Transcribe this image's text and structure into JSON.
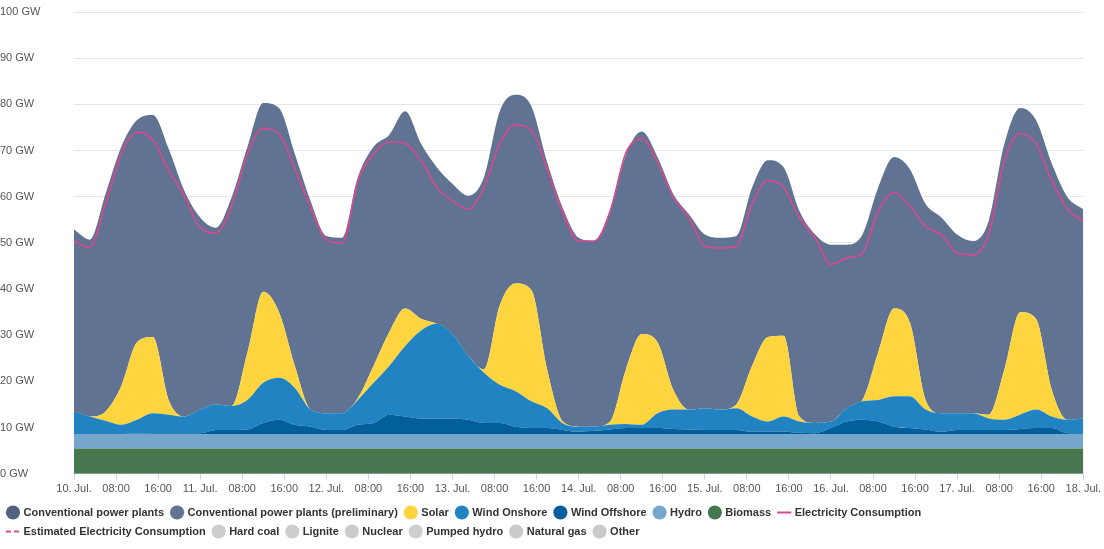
{
  "chart_data": {
    "type": "area",
    "stacked": true,
    "grid": "y",
    "legend": "bottom",
    "marker": "none",
    "x": [
      "--07-10T00:00",
      "--07-10T03:00",
      "--07-10T06:00",
      "--07-10T09:00",
      "--07-10T12:00",
      "--07-10T15:00",
      "--07-10T18:00",
      "--07-10T21:00",
      "--07-11T00:00",
      "--07-11T03:00",
      "--07-11T06:00",
      "--07-11T09:00",
      "--07-11T12:00",
      "--07-11T15:00",
      "--07-11T18:00",
      "--07-11T21:00",
      "--07-12T00:00",
      "--07-12T03:00",
      "--07-12T06:00",
      "--07-12T09:00",
      "--07-12T12:00",
      "--07-12T15:00",
      "--07-12T18:00",
      "--07-12T21:00",
      "--07-13T00:00",
      "--07-13T03:00",
      "--07-13T06:00",
      "--07-13T09:00",
      "--07-13T12:00",
      "--07-13T15:00",
      "--07-13T18:00",
      "--07-13T21:00",
      "--07-14T00:00",
      "--07-14T03:00",
      "--07-14T06:00",
      "--07-14T09:00",
      "--07-14T12:00",
      "--07-14T15:00",
      "--07-14T18:00",
      "--07-14T21:00",
      "--07-15T00:00",
      "--07-15T03:00",
      "--07-15T06:00",
      "--07-15T09:00",
      "--07-15T12:00",
      "--07-15T15:00",
      "--07-15T18:00",
      "--07-15T21:00",
      "--07-16T00:00",
      "--07-16T03:00",
      "--07-16T06:00",
      "--07-16T09:00",
      "--07-16T12:00",
      "--07-16T15:00",
      "--07-16T18:00",
      "--07-16T21:00",
      "--07-17T00:00",
      "--07-17T03:00",
      "--07-17T06:00",
      "--07-17T09:00",
      "--07-17T12:00",
      "--07-17T15:00",
      "--07-17T18:00",
      "--07-17T21:00",
      "--07-18T00:00"
    ],
    "xlim": [
      "--07-10T00:00",
      "--07-18T00:00"
    ],
    "xticks": [
      {
        "value": "--07-10T00:00",
        "label": "10. Jul."
      },
      {
        "value": "--07-10T08:00",
        "label": "08:00"
      },
      {
        "value": "--07-10T16:00",
        "label": "16:00"
      },
      {
        "value": "--07-11T00:00",
        "label": "11. Jul."
      },
      {
        "value": "--07-11T08:00",
        "label": "08:00"
      },
      {
        "value": "--07-11T16:00",
        "label": "16:00"
      },
      {
        "value": "--07-12T00:00",
        "label": "12. Jul."
      },
      {
        "value": "--07-12T08:00",
        "label": "08:00"
      },
      {
        "value": "--07-12T16:00",
        "label": "16:00"
      },
      {
        "value": "--07-13T00:00",
        "label": "13. Jul."
      },
      {
        "value": "--07-13T08:00",
        "label": "08:00"
      },
      {
        "value": "--07-13T16:00",
        "label": "16:00"
      },
      {
        "value": "--07-14T00:00",
        "label": "14. Jul."
      },
      {
        "value": "--07-14T08:00",
        "label": "08:00"
      },
      {
        "value": "--07-14T16:00",
        "label": "16:00"
      },
      {
        "value": "--07-15T00:00",
        "label": "15. Jul."
      },
      {
        "value": "--07-15T08:00",
        "label": "08:00"
      },
      {
        "value": "--07-15T16:00",
        "label": "16:00"
      },
      {
        "value": "--07-16T00:00",
        "label": "16. Jul."
      },
      {
        "value": "--07-16T08:00",
        "label": "08:00"
      },
      {
        "value": "--07-16T16:00",
        "label": "16:00"
      },
      {
        "value": "--07-17T00:00",
        "label": "17. Jul."
      },
      {
        "value": "--07-17T08:00",
        "label": "08:00"
      },
      {
        "value": "--07-17T16:00",
        "label": "16:00"
      },
      {
        "value": "--07-18T00:00",
        "label": "18. Jul."
      }
    ],
    "ylim": [
      0,
      100
    ],
    "yticks": [
      {
        "value": 0,
        "label": "0 GW"
      },
      {
        "value": 10,
        "label": "10 GW"
      },
      {
        "value": 20,
        "label": "20 GW"
      },
      {
        "value": 30,
        "label": "30 GW"
      },
      {
        "value": 40,
        "label": "40 GW"
      },
      {
        "value": 50,
        "label": "50 GW"
      },
      {
        "value": 60,
        "label": "60 GW"
      },
      {
        "value": 70,
        "label": "70 GW"
      },
      {
        "value": 80,
        "label": "80 GW"
      },
      {
        "value": 90,
        "label": "90 GW"
      },
      {
        "value": 100,
        "label": "100 GW"
      }
    ],
    "series": [
      {
        "name": "Biomass",
        "color": "#46774f",
        "values": [
          5.5,
          5.5,
          5.5,
          5.5,
          5.5,
          5.5,
          5.5,
          5.5,
          5.5,
          5.5,
          5.5,
          5.5,
          5.5,
          5.5,
          5.5,
          5.5,
          5.5,
          5.5,
          5.5,
          5.5,
          5.5,
          5.5,
          5.5,
          5.5,
          5.5,
          5.5,
          5.5,
          5.5,
          5.5,
          5.5,
          5.5,
          5.5,
          5.5,
          5.5,
          5.5,
          5.5,
          5.5,
          5.5,
          5.5,
          5.5,
          5.5,
          5.5,
          5.5,
          5.5,
          5.5,
          5.5,
          5.5,
          5.5,
          5.5,
          5.5,
          5.5,
          5.5,
          5.5,
          5.5,
          5.5,
          5.5,
          5.5,
          5.5,
          5.5,
          5.5,
          5.5,
          5.5,
          5.5,
          5.5,
          5.5
        ]
      },
      {
        "name": "Hydro",
        "color": "#75a6cb",
        "values": [
          3.1,
          3.1,
          3.1,
          3.1,
          3.1,
          3.1,
          3.1,
          3.1,
          3.1,
          3.1,
          3.1,
          3.1,
          3.1,
          3.1,
          3.1,
          3.1,
          3.1,
          3.1,
          3.1,
          3.1,
          3.1,
          3.1,
          3.1,
          3.1,
          3.1,
          3.1,
          3.1,
          3.1,
          3.1,
          3.1,
          3.1,
          3.1,
          3.1,
          3.1,
          3.1,
          3.1,
          3.1,
          3.1,
          3.1,
          3.1,
          3.1,
          3.1,
          3.1,
          3.1,
          3.1,
          3.1,
          3.1,
          3.1,
          3.1,
          3.1,
          3.1,
          3.1,
          3.1,
          3.1,
          3.1,
          3.1,
          3.1,
          3.1,
          3.1,
          3.1,
          3.1,
          3.1,
          3.1,
          3.1,
          3.1
        ]
      },
      {
        "name": "Wind Offshore",
        "color": "#025f9b",
        "values": [
          0,
          0,
          0,
          0,
          0.1,
          0.2,
          0.2,
          0.2,
          0.2,
          0.9,
          0.9,
          1.0,
          2.4,
          3.1,
          2.0,
          1.6,
          0.9,
          0.9,
          2.0,
          2.4,
          4.2,
          3.8,
          3.4,
          3.4,
          3.4,
          3.1,
          2.4,
          2.4,
          1.6,
          1.3,
          1.3,
          0.9,
          0.5,
          0.7,
          1.0,
          1.3,
          1.3,
          1.3,
          1.1,
          1.0,
          0.9,
          0.9,
          0.9,
          0.5,
          0.5,
          0.5,
          0.3,
          0.2,
          1.3,
          2.7,
          3.1,
          2.7,
          1.6,
          1.3,
          1.0,
          0.5,
          0.9,
          0.9,
          0.9,
          0.9,
          1.1,
          1.3,
          1.3,
          0.2,
          0.2
        ]
      },
      {
        "name": "Wind Onshore",
        "color": "#2183c1",
        "values": [
          4.9,
          3.8,
          2.9,
          2.0,
          3.0,
          4.3,
          4.0,
          3.6,
          5.1,
          5.5,
          5.2,
          6.4,
          8.7,
          9.1,
          8.0,
          3.7,
          3.6,
          3.6,
          5.4,
          8.7,
          10.6,
          15.3,
          19.0,
          20.5,
          18.3,
          13.8,
          10.9,
          8.3,
          7.7,
          5.8,
          4.3,
          1.4,
          1.1,
          0.9,
          1.0,
          0.9,
          0.7,
          3.2,
          4.2,
          4.3,
          4.7,
          4.4,
          4.7,
          3.3,
          2.2,
          3.3,
          2.4,
          2.2,
          1.4,
          2.9,
          4.0,
          4.7,
          6.6,
          6.9,
          4.3,
          4.0,
          3.6,
          3.6,
          2.5,
          2.2,
          3.1,
          4.0,
          2.5,
          2.9,
          3.2
        ]
      },
      {
        "name": "Solar",
        "color": "#fed53f",
        "values": [
          0,
          0,
          2.0,
          8.4,
          16.8,
          16.5,
          3.2,
          0,
          0,
          0,
          0,
          10.3,
          19.7,
          14.2,
          4.8,
          0,
          0,
          0,
          0.4,
          3.7,
          7.3,
          8.1,
          2.6,
          0,
          0,
          0,
          0.7,
          17.2,
          23.3,
          24.1,
          8.4,
          0.4,
          0,
          0,
          0.7,
          11.8,
          19.7,
          15.4,
          4.3,
          0,
          0,
          0,
          0.8,
          11.0,
          18.3,
          17.5,
          1.1,
          0,
          0,
          0,
          0.3,
          10.3,
          19.0,
          16.0,
          2.1,
          0,
          0,
          0,
          0.8,
          10.9,
          22.2,
          19.7,
          5.8,
          0,
          0
        ]
      },
      {
        "name": "Conventional power plants (preliminary)",
        "color": "#617392",
        "values": [
          39.4,
          38.3,
          47.1,
          51.8,
          48.1,
          48.1,
          54.4,
          48.9,
          41.6,
          38.3,
          45.2,
          44.5,
          40.9,
          44.2,
          45.9,
          45.2,
          38.4,
          38.0,
          47.8,
          47.4,
          42.7,
          42.7,
          37.9,
          33.9,
          32.5,
          34.7,
          41.6,
          42.0,
          40.9,
          39.8,
          44.9,
          46.2,
          40.9,
          40.2,
          45.6,
          46.4,
          43.8,
          40.1,
          42.4,
          42.3,
          37.6,
          37.2,
          36.5,
          38.6,
          38.3,
          36.5,
          44.5,
          40.8,
          38.3,
          35.4,
          35.8,
          35.7,
          32.8,
          33.2,
          42.4,
          42.4,
          38.7,
          37.3,
          41.9,
          48.9,
          44.2,
          43.0,
          49.0,
          48.2,
          45.3
        ]
      },
      {
        "name": "Conventional power plants",
        "color": "#53627f",
        "values": [
          null,
          null,
          null,
          null,
          null,
          null,
          null,
          null,
          null,
          null,
          null,
          null,
          null,
          null,
          null,
          null,
          null,
          null,
          null,
          null,
          null,
          null,
          null,
          null,
          null,
          null,
          null,
          null,
          null,
          null,
          null,
          null,
          null,
          null,
          null,
          null,
          null,
          null,
          null,
          null,
          null,
          null,
          null,
          null,
          null,
          null,
          null,
          null,
          null,
          null,
          null,
          null,
          null,
          null,
          null,
          null,
          null,
          null,
          null,
          null,
          null,
          null,
          null,
          null,
          null
        ]
      },
      {
        "name": "Electricity Consumption",
        "type": "line",
        "color": "#d9488f",
        "line_style": "solid",
        "values": [
          50.4,
          49.0,
          58.4,
          69.3,
          74.0,
          72.3,
          65.7,
          60.2,
          53.3,
          52.2,
          58.0,
          69.3,
          74.8,
          73.7,
          66.1,
          57.7,
          50.7,
          50.0,
          63.5,
          69.3,
          71.9,
          71.5,
          67.9,
          62.0,
          59.1,
          57.3,
          62.0,
          71.5,
          75.5,
          74.5,
          66.0,
          56.5,
          50.4,
          50.4,
          56.9,
          69.5,
          72.6,
          67.5,
          59.9,
          55.5,
          49.3,
          48.9,
          49.3,
          58.4,
          63.5,
          62.0,
          55.5,
          51.1,
          45.3,
          46.7,
          47.8,
          56.9,
          60.9,
          58.0,
          53.6,
          51.8,
          47.8,
          47.4,
          51.8,
          67.9,
          73.7,
          71.5,
          63.5,
          57.3,
          54.7
        ]
      },
      {
        "name": "Estimated Electricity Consumption",
        "type": "line",
        "color": "#d9488f",
        "line_style": "dashed",
        "values": [
          null,
          null,
          null,
          null,
          null,
          null,
          null,
          null,
          null,
          null,
          null,
          null,
          null,
          null,
          null,
          null,
          null,
          null,
          null,
          null,
          null,
          null,
          null,
          null,
          null,
          null,
          null,
          null,
          null,
          null,
          null,
          null,
          null,
          null,
          null,
          null,
          null,
          null,
          null,
          null,
          null,
          null,
          null,
          null,
          null,
          null,
          null,
          null,
          null,
          null,
          null,
          null,
          null,
          null,
          null,
          null,
          null,
          null,
          null,
          null,
          null,
          null,
          null,
          null,
          null
        ]
      },
      {
        "name": "Hard coal",
        "color": "#cccccc",
        "values": [
          null,
          null,
          null,
          null,
          null,
          null,
          null,
          null,
          null,
          null,
          null,
          null,
          null,
          null,
          null,
          null,
          null,
          null,
          null,
          null,
          null,
          null,
          null,
          null,
          null,
          null,
          null,
          null,
          null,
          null,
          null,
          null,
          null,
          null,
          null,
          null,
          null,
          null,
          null,
          null,
          null,
          null,
          null,
          null,
          null,
          null,
          null,
          null,
          null,
          null,
          null,
          null,
          null,
          null,
          null,
          null,
          null,
          null,
          null,
          null,
          null,
          null,
          null,
          null,
          null
        ]
      },
      {
        "name": "Lignite",
        "color": "#cdcdcd",
        "values": [
          null,
          null,
          null,
          null,
          null,
          null,
          null,
          null,
          null,
          null,
          null,
          null,
          null,
          null,
          null,
          null,
          null,
          null,
          null,
          null,
          null,
          null,
          null,
          null,
          null,
          null,
          null,
          null,
          null,
          null,
          null,
          null,
          null,
          null,
          null,
          null,
          null,
          null,
          null,
          null,
          null,
          null,
          null,
          null,
          null,
          null,
          null,
          null,
          null,
          null,
          null,
          null,
          null,
          null,
          null,
          null,
          null,
          null,
          null,
          null,
          null,
          null,
          null,
          null,
          null
        ]
      },
      {
        "name": "Nuclear",
        "color": "#cbcbcb",
        "values": [
          null,
          null,
          null,
          null,
          null,
          null,
          null,
          null,
          null,
          null,
          null,
          null,
          null,
          null,
          null,
          null,
          null,
          null,
          null,
          null,
          null,
          null,
          null,
          null,
          null,
          null,
          null,
          null,
          null,
          null,
          null,
          null,
          null,
          null,
          null,
          null,
          null,
          null,
          null,
          null,
          null,
          null,
          null,
          null,
          null,
          null,
          null,
          null,
          null,
          null,
          null,
          null,
          null,
          null,
          null,
          null,
          null,
          null,
          null,
          null,
          null,
          null,
          null,
          null,
          null
        ]
      },
      {
        "name": "Pumped hydro",
        "color": "#cecece",
        "values": [
          null,
          null,
          null,
          null,
          null,
          null,
          null,
          null,
          null,
          null,
          null,
          null,
          null,
          null,
          null,
          null,
          null,
          null,
          null,
          null,
          null,
          null,
          null,
          null,
          null,
          null,
          null,
          null,
          null,
          null,
          null,
          null,
          null,
          null,
          null,
          null,
          null,
          null,
          null,
          null,
          null,
          null,
          null,
          null,
          null,
          null,
          null,
          null,
          null,
          null,
          null,
          null,
          null,
          null,
          null,
          null,
          null,
          null,
          null,
          null,
          null,
          null,
          null,
          null,
          null
        ]
      },
      {
        "name": "Natural gas",
        "color": "#cacaca",
        "values": [
          null,
          null,
          null,
          null,
          null,
          null,
          null,
          null,
          null,
          null,
          null,
          null,
          null,
          null,
          null,
          null,
          null,
          null,
          null,
          null,
          null,
          null,
          null,
          null,
          null,
          null,
          null,
          null,
          null,
          null,
          null,
          null,
          null,
          null,
          null,
          null,
          null,
          null,
          null,
          null,
          null,
          null,
          null,
          null,
          null,
          null,
          null,
          null,
          null,
          null,
          null,
          null,
          null,
          null,
          null,
          null,
          null,
          null,
          null,
          null,
          null,
          null,
          null,
          null,
          null
        ]
      },
      {
        "name": "Other",
        "color": "#c9c9c9",
        "values": [
          null,
          null,
          null,
          null,
          null,
          null,
          null,
          null,
          null,
          null,
          null,
          null,
          null,
          null,
          null,
          null,
          null,
          null,
          null,
          null,
          null,
          null,
          null,
          null,
          null,
          null,
          null,
          null,
          null,
          null,
          null,
          null,
          null,
          null,
          null,
          null,
          null,
          null,
          null,
          null,
          null,
          null,
          null,
          null,
          null,
          null,
          null,
          null,
          null,
          null,
          null,
          null,
          null,
          null,
          null,
          null,
          null,
          null,
          null,
          null,
          null,
          null,
          null,
          null,
          null
        ]
      }
    ]
  }
}
